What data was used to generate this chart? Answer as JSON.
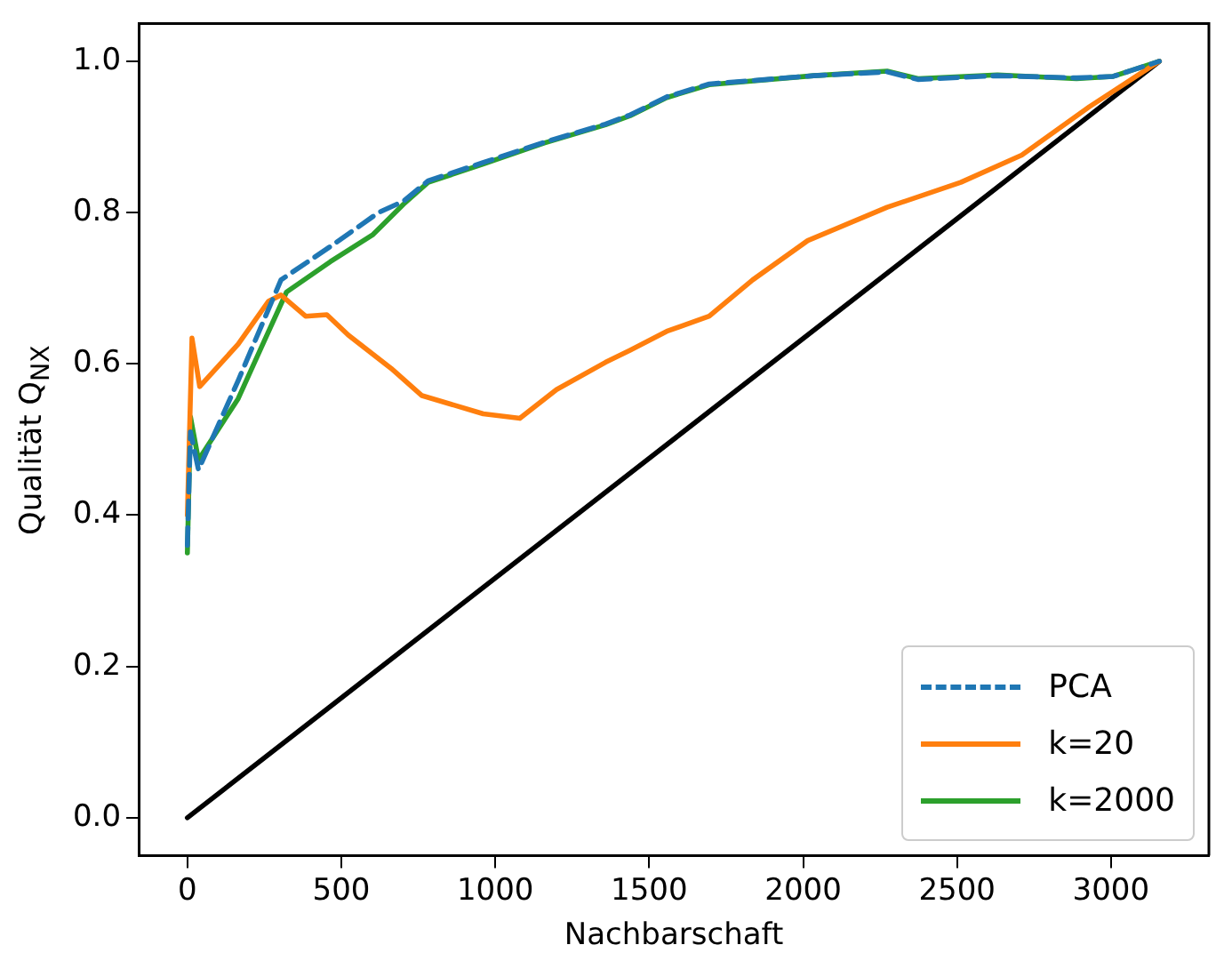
{
  "chart_data": {
    "type": "line",
    "xlabel": "Nachbarschaft",
    "ylabel": "Qualität Q$_{NX}$",
    "xlim": [
      -158,
      3318
    ],
    "ylim": [
      -0.05,
      1.05
    ],
    "xticks": [
      0,
      500,
      1000,
      1500,
      2000,
      2500,
      3000
    ],
    "yticks": [
      {
        "value": 0,
        "label": "0.0"
      },
      {
        "value": 0.2,
        "label": "0.2"
      },
      {
        "value": 0.4,
        "label": "0.4"
      },
      {
        "value": 0.6,
        "label": "0.6"
      },
      {
        "value": 0.8,
        "label": "0.8"
      },
      {
        "value": 1,
        "label": "1.0"
      }
    ],
    "grid": false,
    "legend": "bottom right",
    "marker": "none",
    "series": [
      {
        "name": "PCA",
        "color": "#1f77b4",
        "line_style": "dashed",
        "x": [
          0,
          10,
          36,
          165,
          304,
          464,
          621,
          702,
          782,
          960,
          1159,
          1358,
          1438,
          1557,
          1695,
          2035,
          2273,
          2373,
          2631,
          2888,
          3007,
          3157
        ],
        "values": [
          0.36,
          0.51,
          0.46,
          0.578,
          0.711,
          0.755,
          0.8,
          0.815,
          0.842,
          0.866,
          0.893,
          0.917,
          0.929,
          0.953,
          0.97,
          0.981,
          0.986,
          0.976,
          0.981,
          0.978,
          0.98,
          1.0
        ]
      },
      {
        "name": "k=20",
        "color": "#ff7f0e",
        "line_style": "solid",
        "x": [
          0,
          15,
          40,
          165,
          264,
          304,
          384,
          453,
          523,
          662,
          762,
          961,
          1080,
          1199,
          1358,
          1438,
          1557,
          1695,
          1836,
          2015,
          2273,
          2512,
          2710,
          2930,
          3157
        ],
        "values": [
          0.4,
          0.634,
          0.57,
          0.626,
          0.683,
          0.691,
          0.663,
          0.665,
          0.638,
          0.594,
          0.558,
          0.534,
          0.528,
          0.566,
          0.602,
          0.618,
          0.643,
          0.663,
          0.711,
          0.763,
          0.807,
          0.84,
          0.876,
          0.94,
          1.0
        ]
      },
      {
        "name": "k=2000",
        "color": "#2ca02c",
        "line_style": "solid",
        "x": [
          0,
          10,
          36,
          165,
          245,
          322,
          464,
          603,
          702,
          782,
          960,
          1159,
          1358,
          1438,
          1557,
          1695,
          2035,
          2273,
          2373,
          2631,
          2888,
          3007,
          3157
        ],
        "values": [
          0.35,
          0.53,
          0.473,
          0.554,
          0.626,
          0.695,
          0.735,
          0.771,
          0.811,
          0.84,
          0.864,
          0.892,
          0.916,
          0.928,
          0.952,
          0.969,
          0.981,
          0.987,
          0.977,
          0.982,
          0.977,
          0.98,
          1.0
        ]
      },
      {
        "color": "#000000",
        "line_style": "solid",
        "x": [
          0,
          3157
        ],
        "values": [
          0,
          1.0
        ]
      }
    ]
  }
}
